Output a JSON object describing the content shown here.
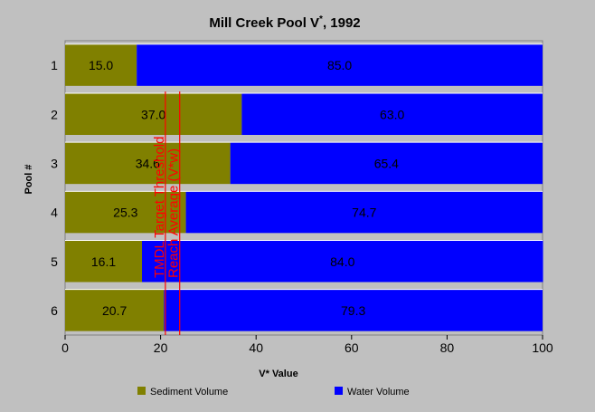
{
  "chart_data": {
    "type": "bar",
    "orientation": "horizontal",
    "stacked": true,
    "title": "Mill Creek Pool V*, 1992",
    "xlabel": "V* Value",
    "ylabel": "Pool #",
    "xlim": [
      0,
      100
    ],
    "xticks": [
      0,
      20,
      40,
      60,
      80,
      100
    ],
    "categories": [
      "1",
      "2",
      "3",
      "4",
      "5",
      "6"
    ],
    "series": [
      {
        "name": "Sediment Volume",
        "color": "#808000",
        "values": [
          15.0,
          37.0,
          34.6,
          25.3,
          16.1,
          20.7
        ],
        "labels": [
          "15.0",
          "37.0",
          "34.6",
          "25.3",
          "16.1",
          "20.7"
        ]
      },
      {
        "name": "Water Volume",
        "color": "#0000ff",
        "values": [
          85.0,
          63.0,
          65.4,
          74.7,
          84.0,
          79.3
        ],
        "labels": [
          "85.0",
          "63.0",
          "65.4",
          "74.7",
          "84.0",
          "79.3"
        ]
      }
    ],
    "reference_lines": [
      {
        "label": "TMDL Target Threshold",
        "value": 21,
        "color": "#ff0000"
      },
      {
        "label": "Reach Average (V*w)",
        "value": 24,
        "color": "#ff0000"
      }
    ],
    "legend_position": "bottom",
    "grid": false
  }
}
